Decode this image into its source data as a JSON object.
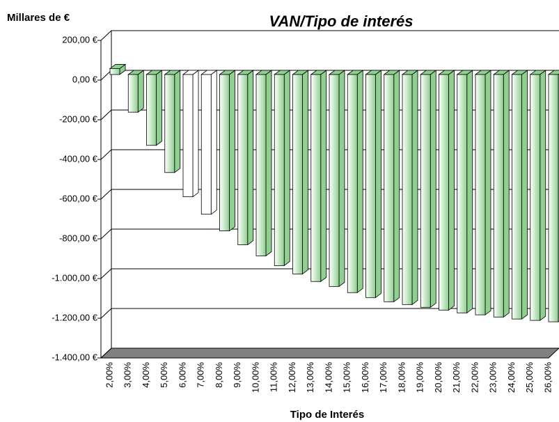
{
  "chart_data": {
    "type": "bar3d",
    "title": "VAN/Tipo de interés",
    "y_axis_label": "Millares de €",
    "x_axis_label": "Tipo de Interés",
    "categories": [
      "2,00%",
      "3,00%",
      "4,00%",
      "5,00%",
      "6,00%",
      "7,00%",
      "8,00%",
      "9,00%",
      "10,00%",
      "11,00%",
      "12,00%",
      "13,00%",
      "14,00%",
      "15,00%",
      "16,00%",
      "17,00%",
      "18,00%",
      "19,00%",
      "20,00%",
      "21,00%",
      "22,00%",
      "23,00%",
      "24,00%",
      "25,00%",
      "26,00%"
    ],
    "values": [
      30,
      -190,
      -357,
      -494,
      -616,
      -704,
      -788,
      -858,
      -914,
      -963,
      -1005,
      -1043,
      -1068,
      -1099,
      -1124,
      -1145,
      -1159,
      -1173,
      -1187,
      -1201,
      -1211,
      -1222,
      -1232,
      -1239,
      -1246
    ],
    "bar_colors": [
      "#8fcf8f",
      "#8fcf8f",
      "#8fcf8f",
      "#8fcf8f",
      "#ffffff",
      "#ffffff",
      "#8fcf8f",
      "#8fcf8f",
      "#8fcf8f",
      "#8fcf8f",
      "#8fcf8f",
      "#8fcf8f",
      "#8fcf8f",
      "#8fcf8f",
      "#8fcf8f",
      "#8fcf8f",
      "#8fcf8f",
      "#8fcf8f",
      "#8fcf8f",
      "#8fcf8f",
      "#8fcf8f",
      "#8fcf8f",
      "#8fcf8f",
      "#8fcf8f",
      "#8fcf8f"
    ],
    "ylim": [
      -1400,
      200
    ],
    "yticks": [
      {
        "value": 200,
        "label": "200,00 €"
      },
      {
        "value": 0,
        "label": "0,00 €"
      },
      {
        "value": -200,
        "label": "-200,00 €"
      },
      {
        "value": -400,
        "label": "-400,00 €"
      },
      {
        "value": -600,
        "label": "-600,00 €"
      },
      {
        "value": -800,
        "label": "-800,00 €"
      },
      {
        "value": -1000,
        "label": "-1.000,00 €"
      },
      {
        "value": -1200,
        "label": "-1.200,00 €"
      },
      {
        "value": -1400,
        "label": "-1.400,00 €"
      }
    ],
    "negative_label_color": "#ff0000",
    "floor_color": "#808080",
    "grid": true
  }
}
